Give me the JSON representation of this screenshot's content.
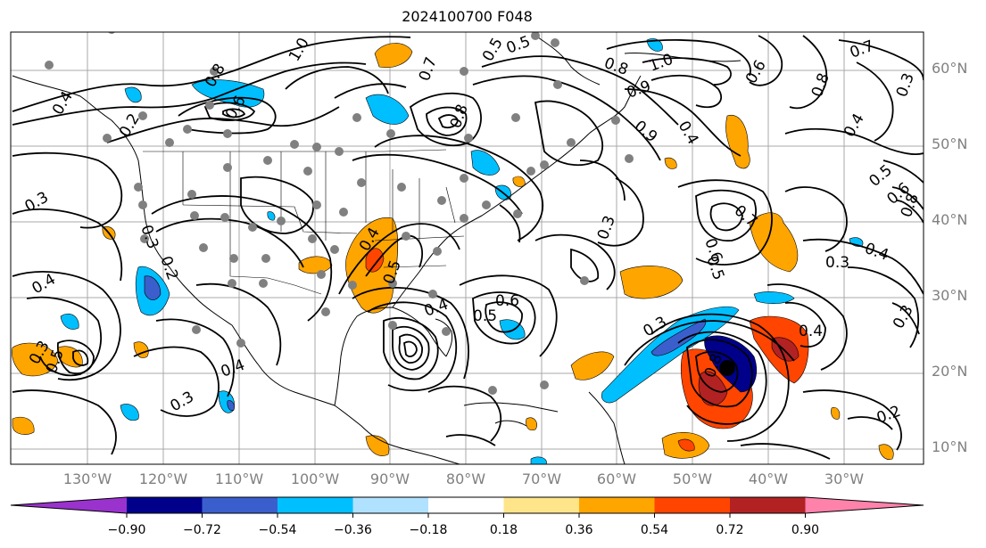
{
  "title": "2024100700 F048",
  "lat_labels": [
    "60°N",
    "50°N",
    "40°N",
    "30°N",
    "20°N",
    "10°N"
  ],
  "lon_labels": [
    "130°W",
    "120°W",
    "110°W",
    "100°W",
    "90°W",
    "80°W",
    "70°W",
    "60°W",
    "50°W",
    "40°W",
    "30°W"
  ],
  "colorbar": {
    "colors": [
      "#9a32cd",
      "#00008b",
      "#3a5fcd",
      "#00bfff",
      "#b0e2ff",
      "#ffffff",
      "#ffe58a",
      "#ffa500",
      "#ff4500",
      "#b22222",
      "#ff82ab"
    ],
    "ticks": [
      "−0.90",
      "−0.72",
      "−0.54",
      "−0.36",
      "−0.18",
      "0.18",
      "0.36",
      "0.54",
      "0.72",
      "0.90"
    ]
  },
  "contour_labels": [
    {
      "text": "1.0"
    },
    {
      "text": "0.8"
    },
    {
      "text": "0.6"
    },
    {
      "text": "0.2"
    },
    {
      "text": "0.3"
    },
    {
      "text": "0.4"
    },
    {
      "text": "0.7"
    },
    {
      "text": "0.5"
    },
    {
      "text": "0.8"
    },
    {
      "text": "0.5"
    },
    {
      "text": "0.9"
    },
    {
      "text": "0.8"
    },
    {
      "text": "1.0"
    },
    {
      "text": "0.9"
    },
    {
      "text": "0.6"
    },
    {
      "text": "0.7"
    },
    {
      "text": "0.8"
    },
    {
      "text": "0.3"
    },
    {
      "text": "0.4"
    },
    {
      "text": "0.4"
    },
    {
      "text": "0.3"
    },
    {
      "text": "0.7"
    },
    {
      "text": "0.6"
    },
    {
      "text": "0.5"
    },
    {
      "text": "0.3"
    },
    {
      "text": "0.4"
    },
    {
      "text": "0.5"
    },
    {
      "text": "0.6"
    },
    {
      "text": "0.8"
    },
    {
      "text": "0.3"
    },
    {
      "text": "0.4"
    },
    {
      "text": "0.6"
    },
    {
      "text": "0.5"
    },
    {
      "text": "0.4"
    },
    {
      "text": "0.8"
    },
    {
      "text": "0.3"
    },
    {
      "text": "0.4"
    },
    {
      "text": "0.5"
    },
    {
      "text": "0.3"
    },
    {
      "text": "0.4"
    },
    {
      "text": "0.3"
    },
    {
      "text": "0.4"
    },
    {
      "text": "0.2"
    },
    {
      "text": "0.5"
    },
    {
      "text": "0.3"
    },
    {
      "text": "0.2"
    }
  ]
}
